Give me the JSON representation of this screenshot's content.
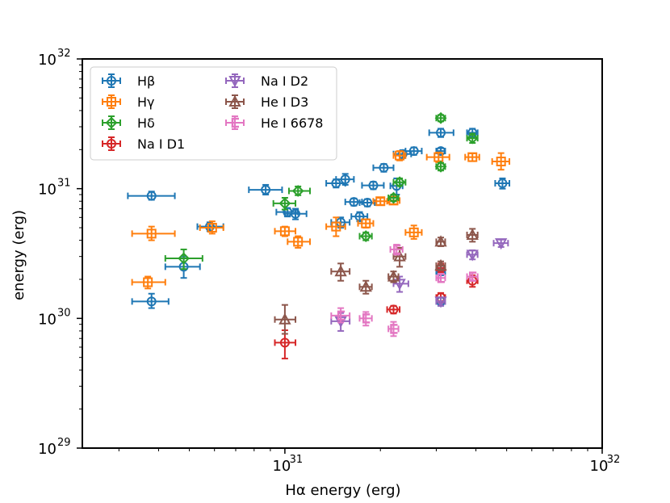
{
  "chart_data": {
    "type": "scatter",
    "xlabel": "Hα energy (erg)",
    "ylabel": "energy (erg)",
    "xscale": "log",
    "yscale": "log",
    "xlim": [
      2.3e+30,
      1e+32
    ],
    "ylim": [
      1e+29,
      1e+32
    ],
    "x_ticks": [
      {
        "value": 1e+31,
        "label": "10",
        "exp": "31"
      },
      {
        "value": 1e+32,
        "label": "10",
        "exp": "32"
      }
    ],
    "y_ticks": [
      {
        "value": 1e+29,
        "label": "10",
        "exp": "29"
      },
      {
        "value": 1e+30,
        "label": "10",
        "exp": "30"
      },
      {
        "value": 1e+31,
        "label": "10",
        "exp": "31"
      },
      {
        "value": 1e+32,
        "label": "10",
        "exp": "32"
      }
    ],
    "grid": false,
    "legend": {
      "placement": "top-left",
      "columns": 2
    },
    "series": [
      {
        "name": "Hβ",
        "color": "#1f77b4",
        "marker": "circle",
        "points": [
          {
            "x": 3.8e+30,
            "y": 8.8e+30,
            "xlo": 3.2e+30,
            "xhi": 4.5e+30,
            "ylo": 8.2e+30,
            "yhi": 9.5e+30
          },
          {
            "x": 3.8e+30,
            "y": 1.35e+30,
            "xlo": 3.3e+30,
            "xhi": 4.3e+30,
            "ylo": 1.2e+30,
            "yhi": 1.55e+30
          },
          {
            "x": 4.8e+30,
            "y": 2.5e+30,
            "xlo": 4.2e+30,
            "xhi": 5.4e+30,
            "ylo": 2.05e+30,
            "yhi": 3e+30
          },
          {
            "x": 5.8e+30,
            "y": 5.1e+30,
            "xlo": 5.3e+30,
            "xhi": 6.4e+30,
            "ylo": 4.7e+30,
            "yhi": 5.5e+30
          },
          {
            "x": 8.7e+30,
            "y": 9.8e+30,
            "xlo": 7.7e+30,
            "xhi": 9.8e+30,
            "ylo": 9e+30,
            "yhi": 1.07e+31
          },
          {
            "x": 1.02e+31,
            "y": 6.6e+30,
            "xlo": 9.4e+30,
            "xhi": 1.1e+31,
            "ylo": 6.1e+30,
            "yhi": 7.1e+30
          },
          {
            "x": 1.08e+31,
            "y": 6.4e+30,
            "xlo": 1e+31,
            "xhi": 1.17e+31,
            "ylo": 5.8e+30,
            "yhi": 7e+30
          },
          {
            "x": 1.45e+31,
            "y": 1.1e+31,
            "xlo": 1.35e+31,
            "xhi": 1.55e+31,
            "ylo": 1.02e+31,
            "yhi": 1.18e+31
          },
          {
            "x": 1.55e+31,
            "y": 1.18e+31,
            "xlo": 1.45e+31,
            "xhi": 1.65e+31,
            "ylo": 1.07e+31,
            "yhi": 1.3e+31
          },
          {
            "x": 1.5e+31,
            "y": 5.5e+30,
            "xlo": 1.4e+31,
            "xhi": 1.6e+31,
            "ylo": 5e+30,
            "yhi": 6e+30
          },
          {
            "x": 1.65e+31,
            "y": 7.9e+30,
            "xlo": 1.55e+31,
            "xhi": 1.75e+31,
            "ylo": 7.4e+30,
            "yhi": 8.4e+30
          },
          {
            "x": 1.72e+31,
            "y": 6.1e+30,
            "xlo": 1.62e+31,
            "xhi": 1.82e+31,
            "ylo": 5.6e+30,
            "yhi": 6.6e+30
          },
          {
            "x": 1.82e+31,
            "y": 7.8e+30,
            "xlo": 1.72e+31,
            "xhi": 1.92e+31,
            "ylo": 7.3e+30,
            "yhi": 8.3e+30
          },
          {
            "x": 1.9e+31,
            "y": 1.06e+31,
            "xlo": 1.75e+31,
            "xhi": 2.05e+31,
            "ylo": 9.9e+30,
            "yhi": 1.13e+31
          },
          {
            "x": 2.05e+31,
            "y": 1.45e+31,
            "xlo": 1.9e+31,
            "xhi": 2.2e+31,
            "ylo": 1.35e+31,
            "yhi": 1.55e+31
          },
          {
            "x": 2.25e+31,
            "y": 1.05e+31,
            "xlo": 2.15e+31,
            "xhi": 2.35e+31,
            "ylo": 9e+30,
            "yhi": 1.2e+31
          },
          {
            "x": 2.35e+31,
            "y": 1.85e+31,
            "xlo": 2.2e+31,
            "xhi": 2.5e+31,
            "ylo": 1.72e+31,
            "yhi": 1.98e+31
          },
          {
            "x": 2.55e+31,
            "y": 1.95e+31,
            "xlo": 2.4e+31,
            "xhi": 2.7e+31,
            "ylo": 1.82e+31,
            "yhi": 2.08e+31
          },
          {
            "x": 3.1e+31,
            "y": 2.7e+31,
            "xlo": 2.85e+31,
            "xhi": 3.4e+31,
            "ylo": 2.5e+31,
            "yhi": 2.9e+31
          },
          {
            "x": 3.1e+31,
            "y": 1.95e+31,
            "xlo": 3e+31,
            "xhi": 3.2e+31,
            "ylo": 1.85e+31,
            "yhi": 2.05e+31
          },
          {
            "x": 3.9e+31,
            "y": 2.7e+31,
            "xlo": 3.75e+31,
            "xhi": 4.05e+31,
            "ylo": 2.5e+31,
            "yhi": 2.9e+31
          },
          {
            "x": 4.85e+31,
            "y": 1.1e+31,
            "xlo": 4.6e+31,
            "xhi": 5.1e+31,
            "ylo": 1e+31,
            "yhi": 1.2e+31
          },
          {
            "x": 3.1e+31,
            "y": 2.3e+30,
            "xlo": 3e+31,
            "xhi": 3.2e+31,
            "ylo": 2.15e+30,
            "yhi": 2.45e+30
          },
          {
            "x": 3.1e+31,
            "y": 1.35e+30,
            "xlo": 3e+31,
            "xhi": 3.2e+31,
            "ylo": 1.25e+30,
            "yhi": 1.45e+30
          }
        ]
      },
      {
        "name": "Hγ",
        "color": "#ff7f0e",
        "marker": "square",
        "points": [
          {
            "x": 3.8e+30,
            "y": 4.5e+30,
            "xlo": 3.3e+30,
            "xhi": 4.5e+30,
            "ylo": 4e+30,
            "yhi": 5.1e+30
          },
          {
            "x": 3.7e+30,
            "y": 1.9e+30,
            "xlo": 3.3e+30,
            "xhi": 4.2e+30,
            "ylo": 1.7e+30,
            "yhi": 2.1e+30
          },
          {
            "x": 5.9e+30,
            "y": 5e+30,
            "xlo": 5.4e+30,
            "xhi": 6.4e+30,
            "ylo": 4.5e+30,
            "yhi": 5.6e+30
          },
          {
            "x": 1e+31,
            "y": 4.7e+30,
            "xlo": 9.3e+30,
            "xhi": 1.08e+31,
            "ylo": 4.3e+30,
            "yhi": 5.1e+30
          },
          {
            "x": 1.1e+31,
            "y": 3.9e+30,
            "xlo": 1.02e+31,
            "xhi": 1.2e+31,
            "ylo": 3.5e+30,
            "yhi": 4.3e+30
          },
          {
            "x": 1.45e+31,
            "y": 5.1e+30,
            "xlo": 1.35e+31,
            "xhi": 1.55e+31,
            "ylo": 4.3e+30,
            "yhi": 6e+30
          },
          {
            "x": 1.8e+31,
            "y": 5.4e+30,
            "xlo": 1.7e+31,
            "xhi": 1.9e+31,
            "ylo": 5e+30,
            "yhi": 5.8e+30
          },
          {
            "x": 2e+31,
            "y": 8e+30,
            "xlo": 1.9e+31,
            "xhi": 2.1e+31,
            "ylo": 7.5e+30,
            "yhi": 8.5e+30
          },
          {
            "x": 2.2e+31,
            "y": 8.1e+30,
            "xlo": 2.12e+31,
            "xhi": 2.3e+31,
            "ylo": 7.6e+30,
            "yhi": 8.6e+30
          },
          {
            "x": 2.3e+31,
            "y": 1.8e+31,
            "xlo": 2.2e+31,
            "xhi": 2.4e+31,
            "ylo": 1.65e+31,
            "yhi": 1.95e+31
          },
          {
            "x": 2.55e+31,
            "y": 4.6e+30,
            "xlo": 2.4e+31,
            "xhi": 2.7e+31,
            "ylo": 4.1e+30,
            "yhi": 5.2e+30
          },
          {
            "x": 3.05e+31,
            "y": 1.75e+31,
            "xlo": 2.8e+31,
            "xhi": 3.3e+31,
            "ylo": 1.6e+31,
            "yhi": 1.9e+31
          },
          {
            "x": 3.9e+31,
            "y": 1.75e+31,
            "xlo": 3.7e+31,
            "xhi": 4.1e+31,
            "ylo": 1.63e+31,
            "yhi": 1.87e+31
          },
          {
            "x": 4.8e+31,
            "y": 1.62e+31,
            "xlo": 4.5e+31,
            "xhi": 5.1e+31,
            "ylo": 1.4e+31,
            "yhi": 1.88e+31
          }
        ]
      },
      {
        "name": "Hδ",
        "color": "#2ca02c",
        "marker": "diamond",
        "points": [
          {
            "x": 4.8e+30,
            "y": 2.9e+30,
            "xlo": 4.2e+30,
            "xhi": 5.5e+30,
            "ylo": 2.4e+30,
            "yhi": 3.4e+30
          },
          {
            "x": 1e+31,
            "y": 7.7e+30,
            "xlo": 9.2e+30,
            "xhi": 1.08e+31,
            "ylo": 6.9e+30,
            "yhi": 8.5e+30
          },
          {
            "x": 1.1e+31,
            "y": 9.6e+30,
            "xlo": 1.03e+31,
            "xhi": 1.2e+31,
            "ylo": 8.9e+30,
            "yhi": 1.04e+31
          },
          {
            "x": 1.8e+31,
            "y": 4.3e+30,
            "xlo": 1.72e+31,
            "xhi": 1.88e+31,
            "ylo": 4e+30,
            "yhi": 4.6e+30
          },
          {
            "x": 2.2e+31,
            "y": 8.5e+30,
            "xlo": 2.12e+31,
            "xhi": 2.28e+31,
            "ylo": 8e+30,
            "yhi": 9e+30
          },
          {
            "x": 2.3e+31,
            "y": 1.12e+31,
            "xlo": 2.2e+31,
            "xhi": 2.4e+31,
            "ylo": 1.05e+31,
            "yhi": 1.2e+31
          },
          {
            "x": 3.1e+31,
            "y": 3.5e+31,
            "xlo": 3e+31,
            "xhi": 3.2e+31,
            "ylo": 3.3e+31,
            "yhi": 3.7e+31
          },
          {
            "x": 3.1e+31,
            "y": 1.48e+31,
            "xlo": 3e+31,
            "xhi": 3.2e+31,
            "ylo": 1.38e+31,
            "yhi": 1.58e+31
          },
          {
            "x": 3.9e+31,
            "y": 2.45e+31,
            "xlo": 3.75e+31,
            "xhi": 4.05e+31,
            "ylo": 2.25e+31,
            "yhi": 2.65e+31
          }
        ]
      },
      {
        "name": "Na I D1",
        "color": "#d62728",
        "marker": "circle",
        "points": [
          {
            "x": 1e+31,
            "y": 6.5e+29,
            "xlo": 9.3e+30,
            "xhi": 1.08e+31,
            "ylo": 4.9e+29,
            "yhi": 8.1e+29
          },
          {
            "x": 2.2e+31,
            "y": 1.17e+30,
            "xlo": 2.1e+31,
            "xhi": 2.3e+31,
            "ylo": 1.09e+30,
            "yhi": 1.25e+30
          },
          {
            "x": 3.1e+31,
            "y": 2.45e+30,
            "xlo": 3e+31,
            "xhi": 3.2e+31,
            "ylo": 2.25e+30,
            "yhi": 2.65e+30
          },
          {
            "x": 3.1e+31,
            "y": 1.45e+30,
            "xlo": 3e+31,
            "xhi": 3.2e+31,
            "ylo": 1.33e+30,
            "yhi": 1.57e+30
          },
          {
            "x": 3.9e+31,
            "y": 1.95e+30,
            "xlo": 3.75e+31,
            "xhi": 4.05e+31,
            "ylo": 1.75e+30,
            "yhi": 2.15e+30
          }
        ]
      },
      {
        "name": "Na I D2",
        "color": "#9467bd",
        "marker": "triangle-down",
        "points": [
          {
            "x": 1.5e+31,
            "y": 9.5e+29,
            "xlo": 1.4e+31,
            "xhi": 1.6e+31,
            "ylo": 8e+29,
            "yhi": 1.1e+30
          },
          {
            "x": 2.3e+31,
            "y": 1.85e+30,
            "xlo": 2.2e+31,
            "xhi": 2.45e+31,
            "ylo": 1.6e+30,
            "yhi": 2.1e+30
          },
          {
            "x": 3.1e+31,
            "y": 1.35e+30,
            "xlo": 3e+31,
            "xhi": 3.2e+31,
            "ylo": 1.25e+30,
            "yhi": 1.45e+30
          },
          {
            "x": 3.9e+31,
            "y": 3.1e+30,
            "xlo": 3.75e+31,
            "xhi": 4.05e+31,
            "ylo": 2.85e+30,
            "yhi": 3.35e+30
          },
          {
            "x": 4.8e+31,
            "y": 3.8e+30,
            "xlo": 4.55e+31,
            "xhi": 5.05e+31,
            "ylo": 3.55e+30,
            "yhi": 4.05e+30
          }
        ]
      },
      {
        "name": "He I D3",
        "color": "#8c564b",
        "marker": "triangle-up",
        "points": [
          {
            "x": 1e+31,
            "y": 9.8e+29,
            "xlo": 9.3e+30,
            "xhi": 1.08e+31,
            "ylo": 7.6e+29,
            "yhi": 1.27e+30
          },
          {
            "x": 1.5e+31,
            "y": 2.3e+30,
            "xlo": 1.4e+31,
            "xhi": 1.6e+31,
            "ylo": 1.95e+30,
            "yhi": 2.65e+30
          },
          {
            "x": 1.8e+31,
            "y": 1.75e+30,
            "xlo": 1.72e+31,
            "xhi": 1.88e+31,
            "ylo": 1.55e+30,
            "yhi": 1.95e+30
          },
          {
            "x": 2.2e+31,
            "y": 2.1e+30,
            "xlo": 2.12e+31,
            "xhi": 2.28e+31,
            "ylo": 1.9e+30,
            "yhi": 2.3e+30
          },
          {
            "x": 2.3e+31,
            "y": 3e+30,
            "xlo": 2.2e+31,
            "xhi": 2.4e+31,
            "ylo": 2.5e+30,
            "yhi": 3.5e+30
          },
          {
            "x": 3.1e+31,
            "y": 3.9e+30,
            "xlo": 3e+31,
            "xhi": 3.2e+31,
            "ylo": 3.6e+30,
            "yhi": 4.2e+30
          },
          {
            "x": 3.1e+31,
            "y": 2.55e+30,
            "xlo": 3e+31,
            "xhi": 3.2e+31,
            "ylo": 2.35e+30,
            "yhi": 2.75e+30
          },
          {
            "x": 3.9e+31,
            "y": 4.4e+30,
            "xlo": 3.75e+31,
            "xhi": 4.05e+31,
            "ylo": 3.9e+30,
            "yhi": 4.9e+30
          }
        ]
      },
      {
        "name": "He I 6678",
        "color": "#e377c2",
        "marker": "left-bracket",
        "points": [
          {
            "x": 1.5e+31,
            "y": 1.05e+30,
            "xlo": 1.4e+31,
            "xhi": 1.6e+31,
            "ylo": 9.3e+29,
            "yhi": 1.2e+30
          },
          {
            "x": 1.8e+31,
            "y": 1e+30,
            "xlo": 1.72e+31,
            "xhi": 1.88e+31,
            "ylo": 8.8e+29,
            "yhi": 1.12e+30
          },
          {
            "x": 2.2e+31,
            "y": 8.3e+29,
            "xlo": 2.12e+31,
            "xhi": 2.28e+31,
            "ylo": 7.3e+29,
            "yhi": 9.4e+29
          },
          {
            "x": 2.25e+31,
            "y": 3.4e+30,
            "xlo": 2.15e+31,
            "xhi": 2.35e+31,
            "ylo": 3.1e+30,
            "yhi": 3.7e+30
          },
          {
            "x": 3.1e+31,
            "y": 2.05e+30,
            "xlo": 3e+31,
            "xhi": 3.2e+31,
            "ylo": 1.9e+30,
            "yhi": 2.2e+30
          },
          {
            "x": 3.9e+31,
            "y": 2.1e+30,
            "xlo": 3.75e+31,
            "xhi": 4.05e+31,
            "ylo": 1.95e+30,
            "yhi": 2.25e+30
          }
        ]
      }
    ]
  }
}
